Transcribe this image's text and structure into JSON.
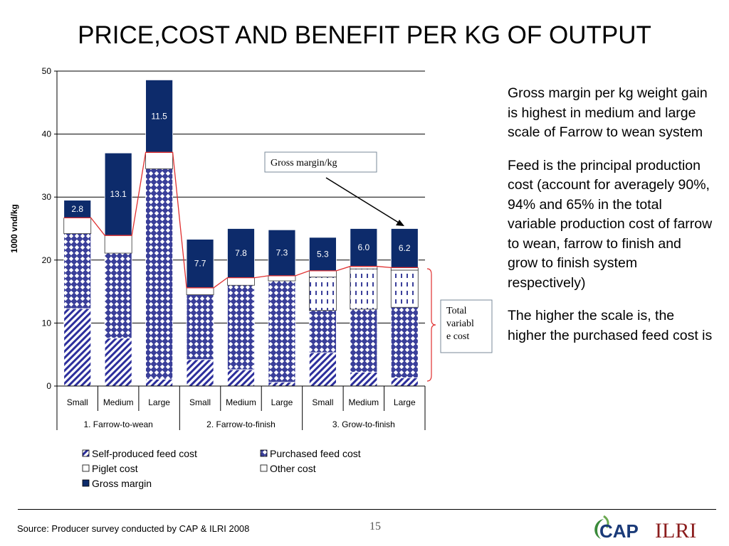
{
  "title": "PRICE,COST AND BENEFIT PER KG OF OUTPUT",
  "side_text": [
    "Gross margin per kg weight gain is highest in medium and large scale of Farrow to wean system",
    "Feed is the principal production cost (account for averagely 90%, 94% and 65% in the total variable production cost of farrow to wean, farrow to finish and grow to finish system respectively)",
    "The higher the scale is, the higher the purchased feed cost is"
  ],
  "source": "Source: Producer survey conducted by CAP & ILRI 2008",
  "page_number": "15",
  "logos": {
    "cap": "CAP",
    "ilri": "ILRI"
  },
  "colors": {
    "navy": "#0d2b6b",
    "hatch": "#2c2e9c",
    "line": "#e03030"
  },
  "chart_data": {
    "type": "bar",
    "stacked": true,
    "ylabel": "1000 vnd/kg",
    "ylim": [
      0,
      50
    ],
    "yticks": [
      0,
      10,
      20,
      30,
      40,
      50
    ],
    "grid": true,
    "categories": [
      "Small",
      "Medium",
      "Large",
      "Small",
      "Medium",
      "Large",
      "Small",
      "Medium",
      "Large"
    ],
    "groups": [
      {
        "label": "1. Farrow-to-wean",
        "span": 3
      },
      {
        "label": "2. Farrow-to-finish",
        "span": 3
      },
      {
        "label": "3. Grow-to-finish",
        "span": 3
      }
    ],
    "series": [
      {
        "name": "Self-produced feed cost",
        "values": [
          12.3,
          7.6,
          1.1,
          4.2,
          2.6,
          0.6,
          5.3,
          2.2,
          1.3
        ]
      },
      {
        "name": "Purchased feed cost",
        "values": [
          11.9,
          13.5,
          33.4,
          10.3,
          13.4,
          16.1,
          6.7,
          10.0,
          11.2
        ]
      },
      {
        "name": "Piglet cost",
        "values": [
          0.0,
          0.0,
          0.0,
          0.0,
          0.0,
          0.0,
          5.3,
          6.4,
          5.9
        ]
      },
      {
        "name": "Other cost",
        "values": [
          2.5,
          2.8,
          2.6,
          1.1,
          1.2,
          0.8,
          1.0,
          0.4,
          0.4
        ]
      },
      {
        "name": "Gross margin",
        "values": [
          2.8,
          13.1,
          11.5,
          7.7,
          7.8,
          7.3,
          5.3,
          6.0,
          6.2
        ]
      }
    ],
    "data_labels": [
      "2.8",
      "13.1",
      "11.5",
      "7.7",
      "7.8",
      "7.3",
      "5.3",
      "6.0",
      "6.2"
    ],
    "annotations": {
      "gross_margin_box": "Gross margin/kg",
      "total_cost_box": "Total variable cost"
    },
    "legend_position": "bottom"
  }
}
